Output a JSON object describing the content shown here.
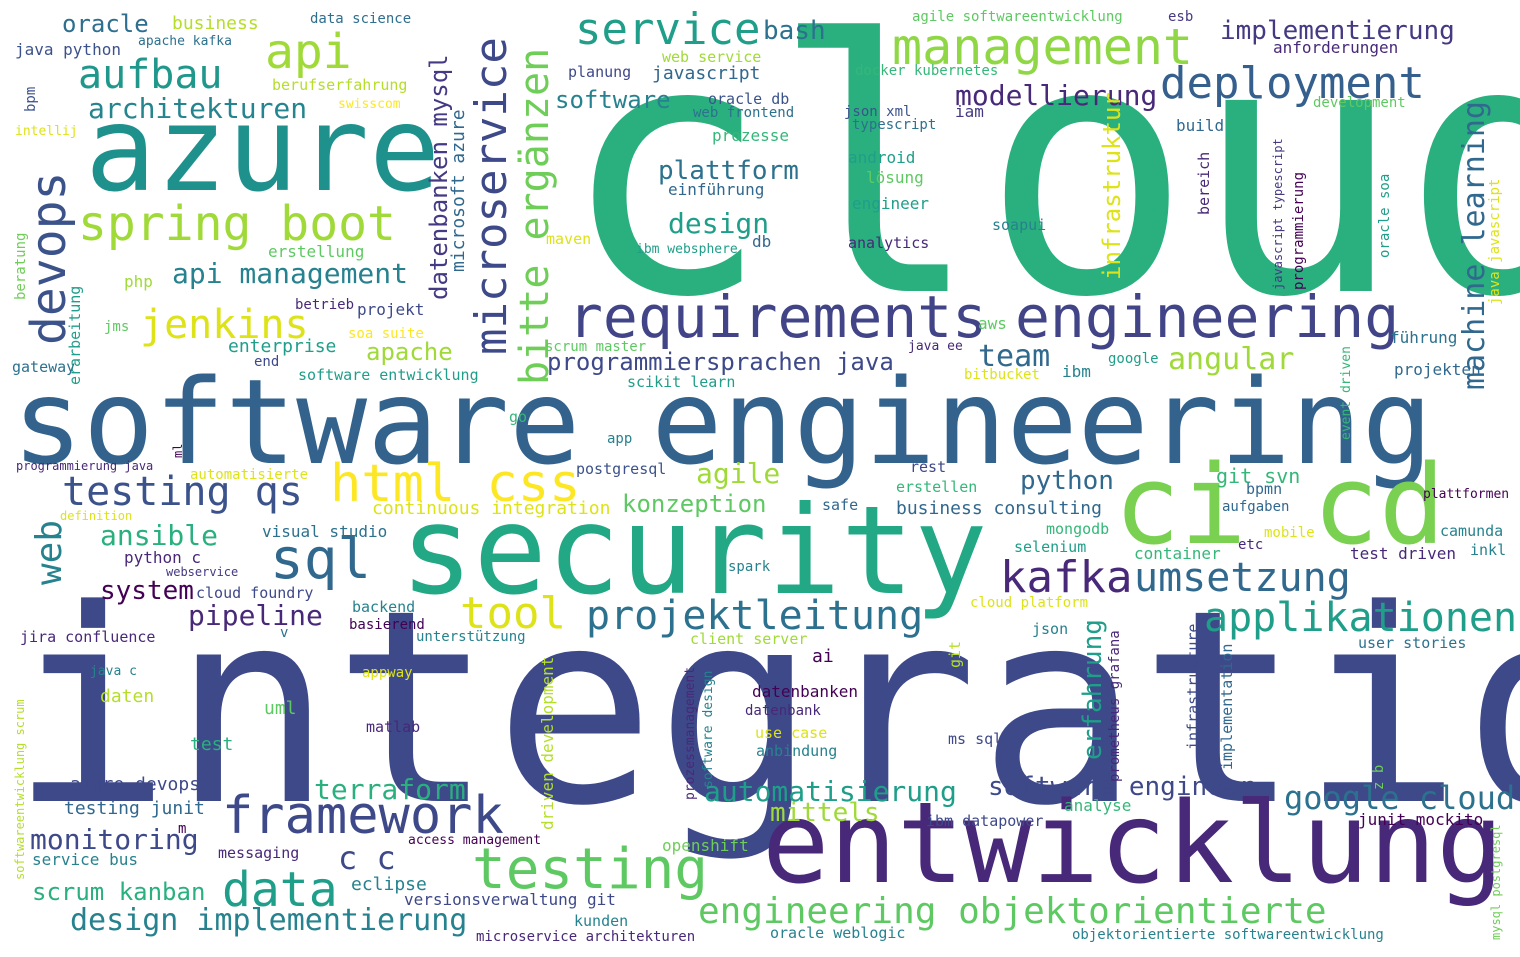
{
  "palette": {
    "dark_purple": "#440154",
    "purple": "#482878",
    "indigo": "#3e4989",
    "blue": "#31688e",
    "teal": "#26828e",
    "cyan": "#1f9e89",
    "green": "#35b779",
    "light_green": "#6ece58",
    "lime": "#b5de2b",
    "yellow": "#fde725"
  },
  "words": {
    "cloud": "cloud",
    "integration": "integration",
    "software_engineering": "software engineering",
    "security": "security",
    "entwicklung": "entwicklung",
    "azure": "azure",
    "ci_cd": "ci cd",
    "requirements": "requirements",
    "engineering": "engineering",
    "management": "management",
    "deployment": "deployment",
    "service": "service",
    "bash": "bash",
    "implementierung": "implementierung",
    "anforderungen": "anforderungen",
    "spring_boot": "spring boot",
    "api": "api",
    "aufbau": "aufbau",
    "architekturen": "architekturen",
    "oracle": "oracle",
    "business": "business",
    "data_science": "data science",
    "java_python": "java python",
    "apache_kafka": "apache kafka",
    "agile_softwareentwicklung": "agile softwareentwicklung",
    "esb": "esb",
    "berufserfahrung": "berufserfahrung",
    "swisscom": "swisscom",
    "intellij": "intellij",
    "bpm": "bpm",
    "devops": "devops",
    "jenkins": "jenkins",
    "api_management": "api management",
    "microservice": "microservice",
    "bitte_ergaenzen": "bitte ergänzen",
    "datenbanken_mysql": "datenbanken mysql",
    "microsoft_azure": "microsoft azure",
    "software": "software",
    "planung": "planung",
    "javascript": "javascript",
    "web_service": "web service",
    "oracle_db": "oracle db",
    "web_frontend": "web frontend",
    "json_xml": "json xml",
    "typescript": "typescript",
    "iam": "iam",
    "modellierung": "modellierung",
    "docker_kubernetes": "docker kubernetes",
    "prozesse": "prozesse",
    "build": "build",
    "development": "development",
    "infrastruktur": "infrastruktur",
    "machine_learning": "machine learning",
    "java_javascript": "java javascript",
    "plattform": "plattform",
    "einfuehrung": "einführung",
    "android": "android",
    "loesung": "lösung",
    "engineer": "engineer",
    "design": "design",
    "db": "db",
    "maven": "maven",
    "ibm_websphere": "ibm websphere",
    "analytics": "analytics",
    "soapui": "soapui",
    "bereich": "bereich",
    "programmierung": "programmierung",
    "javascript_typescript": "javascript typescript",
    "oracle_soa": "oracle soa",
    "php": "php",
    "erstellung": "erstellung",
    "beratung": "beratung",
    "erarbeitung": "erarbeitung",
    "jms": "jms",
    "gateway": "gateway",
    "betrieb": "betrieb",
    "projekt": "projekt",
    "soa_suite": "soa suite",
    "enterprise": "enterprise",
    "end": "end",
    "software_entwicklung": "software entwicklung",
    "apache": "apache",
    "scrum_master": "scrum master",
    "programmiersprachen_java": "programmiersprachen java",
    "scikit_learn": "scikit learn",
    "java_ee": "java ee",
    "aws": "aws",
    "team": "team",
    "google": "google",
    "bitbucket": "bitbucket",
    "ibm": "ibm",
    "angular": "angular",
    "fuehrung": "führung",
    "projekten": "projekten",
    "event_driven": "event driven",
    "go": "go",
    "app": "app",
    "programmierung_java": "programmierung java",
    "ml": "ml",
    "automatisierte": "automatisierte",
    "definition": "definition",
    "testing_qs": "testing qs",
    "html_css": "html css",
    "agile": "agile",
    "postgresql": "postgresql",
    "rest": "rest",
    "git_svn": "git svn",
    "bpmn": "bpmn",
    "plattformen": "plattformen",
    "web": "web",
    "ansible": "ansible",
    "python": "python",
    "konzeption": "konzeption",
    "continuous_integration": "continuous integration",
    "safe": "safe",
    "business_consulting": "business consulting",
    "erstellen": "erstellen",
    "aufgaben": "aufgaben",
    "mongodb": "mongodb",
    "mobile": "mobile",
    "etc": "etc",
    "camunda": "camunda",
    "selenium": "selenium",
    "inkl": "inkl",
    "sql": "sql",
    "visual_studio": "visual studio",
    "python_c": "python c",
    "webservice": "webservice",
    "kafka": "kafka",
    "umsetzung": "umsetzung",
    "container": "container",
    "test_driven": "test driven",
    "spark": "spark",
    "system": "system",
    "cloud_foundry": "cloud foundry",
    "tool": "tool",
    "projektleitung": "projektleitung",
    "applikationen": "applikationen",
    "pipeline": "pipeline",
    "backend": "backend",
    "basierend": "basierend",
    "cloud_platform": "cloud platform",
    "jira_confluence": "jira confluence",
    "v": "v",
    "unterstuetzung": "unterstützung",
    "client_server": "client server",
    "json": "json",
    "user_stories": "user stories",
    "ai": "ai",
    "prometheus_grafana": "prometheus grafana",
    "erfahrung": "erfahrung",
    "infrastructure": "infrastructure",
    "implementation": "implementation",
    "git": "git",
    "java_c": "java c",
    "appway": "appway",
    "daten": "daten",
    "uml": "uml",
    "softwareentwicklung_scrum": "softwareentwicklung scrum",
    "matlab": "matlab",
    "driven_development": "driven development",
    "prozessmanagement": "prozessmanagement",
    "software_design": "software design",
    "datenbanken": "datenbanken",
    "datenbank": "datenbank",
    "use_case": "use case",
    "ms_sql": "ms sql",
    "anbindung": "anbindung",
    "test": "test",
    "z_b": "z b",
    "azure_devops": "azure devops",
    "terraform": "terraform",
    "automatisierung": "automatisierung",
    "software_engineer": "software engineer",
    "testing_junit": "testing junit",
    "framework": "framework",
    "mittels": "mittels",
    "google_cloud": "google cloud",
    "analyse": "analyse",
    "junit_mockito": "junit mockito",
    "monitoring": "monitoring",
    "m": "m",
    "ibm_datapower": "ibm datapower",
    "messaging": "messaging",
    "access_management": "access management",
    "openshift": "openshift",
    "mysql_postgresql": "mysql postgresql",
    "service_bus": "service bus",
    "c_c": "c c",
    "testing": "testing",
    "data": "data",
    "eclipse": "eclipse",
    "scrum_kanban": "scrum kanban",
    "versionsverwaltung_git": "versionsverwaltung git",
    "engineering_objektorientierte": "engineering objektorientierte",
    "design_implementierung": "design implementierung",
    "kunden": "kunden",
    "microservice_architekturen": "microservice architekturen",
    "oracle_weblogic": "oracle weblogic",
    "objektorientierte_softwareentwicklung": "objektorientierte softwareentwicklung"
  }
}
